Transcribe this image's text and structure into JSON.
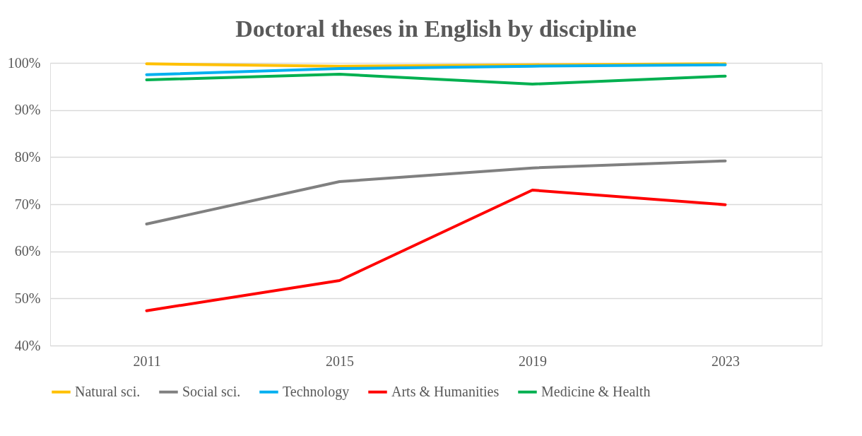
{
  "chart_data": {
    "type": "line",
    "title": "Doctoral theses in English by discipline",
    "categories": [
      "2011",
      "2015",
      "2019",
      "2023"
    ],
    "series": [
      {
        "name": "Natural sci.",
        "color": "#ffc000",
        "values": [
          99.8,
          99.3,
          99.6,
          99.8
        ]
      },
      {
        "name": "Social sci.",
        "color": "#808080",
        "values": [
          65.8,
          74.8,
          77.7,
          79.2
        ]
      },
      {
        "name": "Technology",
        "color": "#00b0f0",
        "values": [
          97.5,
          98.8,
          99.3,
          99.6
        ]
      },
      {
        "name": "Arts & Humanities",
        "color": "#ff0000",
        "values": [
          47.4,
          53.8,
          73.0,
          69.9
        ]
      },
      {
        "name": "Medicine & Health",
        "color": "#00b050",
        "values": [
          96.4,
          97.6,
          95.5,
          97.2
        ]
      }
    ],
    "ylim": [
      40,
      100
    ],
    "yticks": [
      {
        "value": 40,
        "label": "40%"
      },
      {
        "value": 50,
        "label": "50%"
      },
      {
        "value": 60,
        "label": "60%"
      },
      {
        "value": 70,
        "label": "70%"
      },
      {
        "value": 80,
        "label": "80%"
      },
      {
        "value": 90,
        "label": "90%"
      },
      {
        "value": 100,
        "label": "100%"
      }
    ],
    "grid": "y",
    "legend": "bottom",
    "marker": "none",
    "line_style": "solid"
  }
}
